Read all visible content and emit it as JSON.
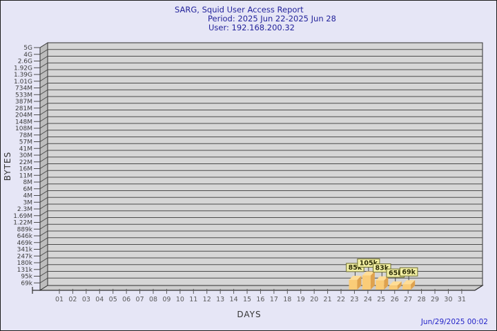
{
  "chart_data": {
    "type": "bar",
    "title": "SARG, Squid User Access Report",
    "subtitle_period": "Period: 2025 Jun 22-2025 Jun 28",
    "subtitle_user": "User: 192.168.200.32",
    "xlabel": "DAYS",
    "ylabel": "BYTES",
    "footer_timestamp": "Jun/29/2025 00:02",
    "scale": "log",
    "grid": true,
    "y_ticks": [
      "5G",
      "4G",
      "2.6G",
      "1.92G",
      "1.39G",
      "1.01G",
      "734M",
      "533M",
      "387M",
      "281M",
      "204M",
      "148M",
      "108M",
      "78M",
      "57M",
      "41M",
      "30M",
      "22M",
      "16M",
      "11M",
      "8M",
      "6M",
      "4M",
      "3M",
      "2.3M",
      "1.69M",
      "1.22M",
      "889k",
      "646k",
      "469k",
      "341k",
      "247k",
      "180k",
      "131k",
      "95k",
      "69k"
    ],
    "x_ticks": [
      "01",
      "02",
      "03",
      "04",
      "05",
      "06",
      "07",
      "08",
      "09",
      "10",
      "11",
      "12",
      "13",
      "14",
      "15",
      "16",
      "17",
      "18",
      "19",
      "20",
      "21",
      "22",
      "23",
      "24",
      "25",
      "26",
      "27",
      "28",
      "29",
      "30",
      "31"
    ],
    "bars": [
      {
        "day": "23",
        "value": 85000,
        "label": "85k"
      },
      {
        "day": "24",
        "value": 105000,
        "label": "105k"
      },
      {
        "day": "25",
        "value": 83000,
        "label": "83k"
      },
      {
        "day": "26",
        "value": 65000,
        "label": "65k"
      },
      {
        "day": "27",
        "value": 69000,
        "label": "69k"
      }
    ],
    "colors": {
      "page_bg": "#E6E6F6",
      "title_blue": "#23239B",
      "timestamp_blue": "#2222C8",
      "panel_bg": "#D6D6D6",
      "grid_line": "#4A4A4A",
      "wall_fill": "#BDBDBD",
      "floor_fill": "#CCCCCC",
      "axis_line": "#2E2E2E",
      "y_label_color": "#3C3C3C",
      "x_label_color": "#5A5A5A",
      "bar_front": "#FACC78",
      "bar_side": "#DFA24E",
      "bar_top": "#FFDD96",
      "value_box_bg": "#F2EFA3",
      "value_box_border": "#6E6E2E",
      "value_text": "#2E2E08"
    }
  }
}
